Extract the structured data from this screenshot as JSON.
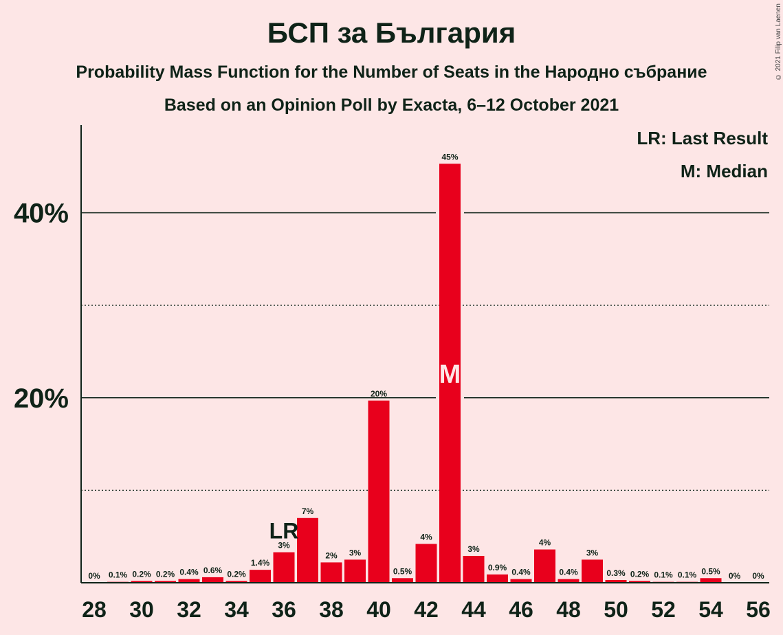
{
  "title": "БСП за България",
  "subtitle1": "Probability Mass Function for the Number of Seats in the Народно събрание",
  "subtitle2": "Based on an Opinion Poll by Exacta, 6–12 October 2021",
  "copyright": "© 2021 Filip van Laenen",
  "legend": {
    "last_result": "LR: Last Result",
    "median": "M: Median"
  },
  "markers": {
    "last_result_label": "LR",
    "last_result_seat": 36,
    "median_label": "M",
    "median_seat": 43
  },
  "colors": {
    "bar": "#E8001C",
    "background": "#FDE6E6",
    "text": "#0F2318"
  },
  "chart_data": {
    "type": "bar",
    "x": [
      28,
      29,
      30,
      31,
      32,
      33,
      34,
      35,
      36,
      37,
      38,
      39,
      40,
      41,
      42,
      43,
      44,
      45,
      46,
      47,
      48,
      49,
      50,
      51,
      52,
      53,
      54,
      55,
      56
    ],
    "values": [
      0,
      0.1,
      0.2,
      0.2,
      0.4,
      0.6,
      0.2,
      1.4,
      3.3,
      7.0,
      2.2,
      2.5,
      19.7,
      0.5,
      4.2,
      45.3,
      2.9,
      0.9,
      0.4,
      3.6,
      0.4,
      2.5,
      0.3,
      0.2,
      0.1,
      0.1,
      0.5,
      0,
      0
    ],
    "data_labels": [
      "0%",
      "0.1%",
      "0.2%",
      "0.2%",
      "0.4%",
      "0.6%",
      "0.2%",
      "1.4%",
      "3%",
      "7%",
      "2%",
      "3%",
      "20%",
      "0.5%",
      "4%",
      "45%",
      "3%",
      "0.9%",
      "0.4%",
      "4%",
      "0.4%",
      "3%",
      "0.3%",
      "0.2%",
      "0.1%",
      "0.1%",
      "0.5%",
      "0%",
      "0%"
    ],
    "x_tick_labels": [
      "28",
      "30",
      "32",
      "34",
      "36",
      "38",
      "40",
      "42",
      "44",
      "46",
      "48",
      "50",
      "52",
      "54",
      "56"
    ],
    "y_tick_labels": [
      "20%",
      "40%"
    ],
    "y_ticks": [
      20,
      40
    ],
    "y_minor_gridlines": [
      10,
      30
    ],
    "ylim": [
      0,
      49.5
    ],
    "xlabel": "",
    "ylabel": ""
  }
}
